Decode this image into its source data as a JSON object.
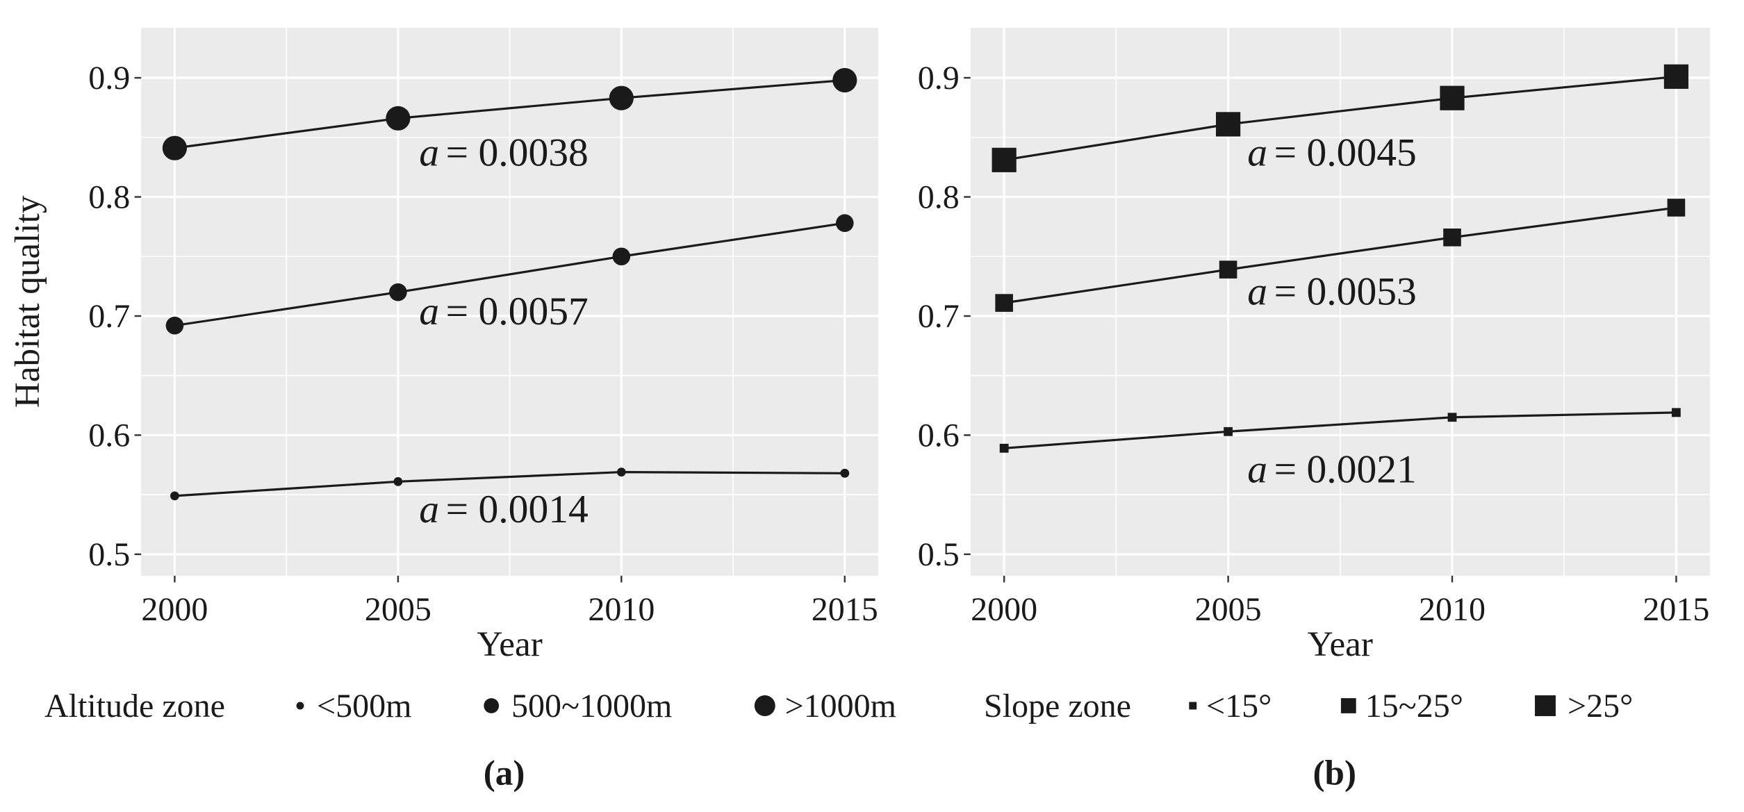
{
  "chart_data": [
    {
      "type": "line",
      "label": "(a)",
      "y_label": "Habitat quality",
      "x_label": "Year",
      "legend_title": "Altitude zone",
      "marker": "circle",
      "x": [
        2000,
        2005,
        2010,
        2015
      ],
      "xlim": [
        1999.25,
        2015.75
      ],
      "xticks": [
        2000,
        2005,
        2010,
        2015
      ],
      "ylim": [
        0.482,
        0.942
      ],
      "yticks": [
        0.5,
        0.6,
        0.7,
        0.8,
        0.9
      ],
      "grid": true,
      "background": "#ebebeb",
      "series": [
        {
          "name": "<500m",
          "color": "#1a1a1a",
          "values": [
            0.549,
            0.561,
            0.569,
            0.568
          ]
        },
        {
          "name": "500~1000m",
          "color": "#1a1a1a",
          "values": [
            0.692,
            0.72,
            0.75,
            0.778
          ]
        },
        {
          "name": ">1000m",
          "color": "#1a1a1a",
          "values": [
            0.841,
            0.866,
            0.883,
            0.898
          ]
        }
      ],
      "annotations": [
        {
          "symbol": "a",
          "text": "= 0.0014"
        },
        {
          "symbol": "a",
          "text": "= 0.0057"
        },
        {
          "symbol": "a",
          "text": "= 0.0038"
        }
      ]
    },
    {
      "type": "line",
      "label": "(b)",
      "x_label": "Year",
      "legend_title": "Slope zone",
      "marker": "square",
      "x": [
        2000,
        2005,
        2010,
        2015
      ],
      "xlim": [
        1999.25,
        2015.75
      ],
      "xticks": [
        2000,
        2005,
        2010,
        2015
      ],
      "ylim": [
        0.482,
        0.942
      ],
      "yticks": [
        0.5,
        0.6,
        0.7,
        0.8,
        0.9
      ],
      "grid": true,
      "background": "#ebebeb",
      "series": [
        {
          "name": "<15°",
          "color": "#1a1a1a",
          "values": [
            0.589,
            0.603,
            0.615,
            0.619
          ]
        },
        {
          "name": "15~25°",
          "color": "#1a1a1a",
          "values": [
            0.711,
            0.739,
            0.766,
            0.791
          ]
        },
        {
          "name": ">25°",
          "color": "#1a1a1a",
          "values": [
            0.831,
            0.861,
            0.883,
            0.901
          ]
        }
      ],
      "annotations": [
        {
          "symbol": "a",
          "text": "= 0.0021"
        },
        {
          "symbol": "a",
          "text": "= 0.0053"
        },
        {
          "symbol": "a",
          "text": "= 0.0045"
        }
      ]
    }
  ]
}
